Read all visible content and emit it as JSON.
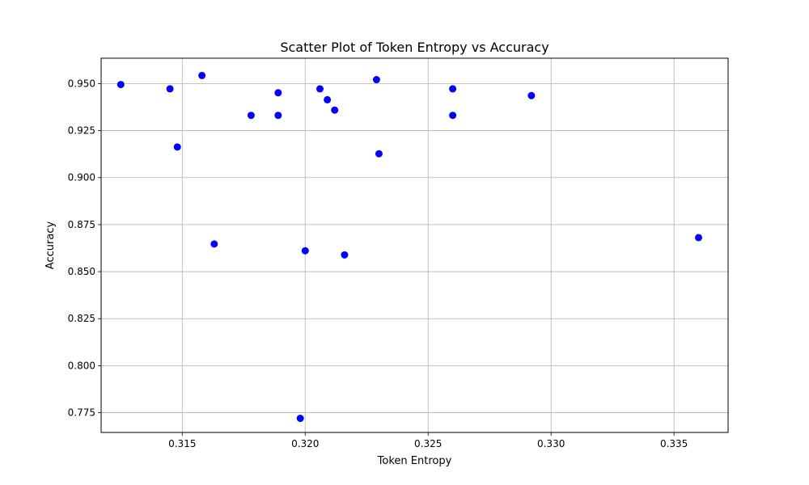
{
  "chart_data": {
    "type": "scatter",
    "title": "Scatter Plot of Token Entropy vs Accuracy",
    "xlabel": "Token Entropy",
    "ylabel": "Accuracy",
    "xlim": [
      0.3117,
      0.3372
    ],
    "ylim": [
      0.7645,
      0.9635
    ],
    "grid": true,
    "marker_color": "#0000ff",
    "x_ticks": [
      {
        "value": 0.315,
        "label": "0.315"
      },
      {
        "value": 0.32,
        "label": "0.320"
      },
      {
        "value": 0.325,
        "label": "0.325"
      },
      {
        "value": 0.33,
        "label": "0.330"
      },
      {
        "value": 0.335,
        "label": "0.335"
      }
    ],
    "y_ticks": [
      {
        "value": 0.775,
        "label": "0.775"
      },
      {
        "value": 0.8,
        "label": "0.800"
      },
      {
        "value": 0.825,
        "label": "0.825"
      },
      {
        "value": 0.85,
        "label": "0.850"
      },
      {
        "value": 0.875,
        "label": "0.875"
      },
      {
        "value": 0.9,
        "label": "0.900"
      },
      {
        "value": 0.925,
        "label": "0.925"
      },
      {
        "value": 0.95,
        "label": "0.950"
      }
    ],
    "points": [
      {
        "x": 0.3125,
        "y": 0.9495
      },
      {
        "x": 0.3145,
        "y": 0.9472
      },
      {
        "x": 0.3148,
        "y": 0.9163
      },
      {
        "x": 0.3158,
        "y": 0.9543
      },
      {
        "x": 0.3163,
        "y": 0.8647
      },
      {
        "x": 0.3178,
        "y": 0.9331
      },
      {
        "x": 0.3189,
        "y": 0.9451
      },
      {
        "x": 0.3189,
        "y": 0.9331
      },
      {
        "x": 0.3198,
        "y": 0.772
      },
      {
        "x": 0.32,
        "y": 0.8611
      },
      {
        "x": 0.3206,
        "y": 0.9472
      },
      {
        "x": 0.3209,
        "y": 0.9414
      },
      {
        "x": 0.3212,
        "y": 0.9359
      },
      {
        "x": 0.3216,
        "y": 0.8589
      },
      {
        "x": 0.3229,
        "y": 0.9521
      },
      {
        "x": 0.323,
        "y": 0.9127
      },
      {
        "x": 0.326,
        "y": 0.9331
      },
      {
        "x": 0.326,
        "y": 0.9472
      },
      {
        "x": 0.3292,
        "y": 0.9436
      },
      {
        "x": 0.336,
        "y": 0.8681
      }
    ]
  }
}
